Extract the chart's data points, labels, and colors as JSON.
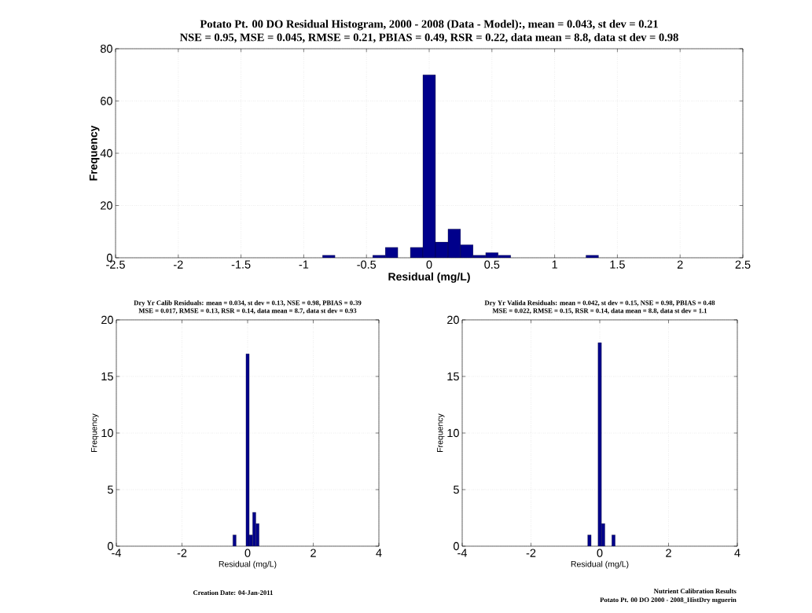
{
  "chart_data": [
    {
      "type": "histogram",
      "title": "Potato Pt. 00 DO Residual Histogram, 2000 - 2008 (Data - Model):, mean =  0.043, st dev = 0.21",
      "subtitle": "NSE = 0.95, MSE = 0.045, RMSE = 0.21, PBIAS = 0.49, RSR = 0.22, data mean = 8.8, data st dev = 0.98",
      "xlabel": "Residual (mg/L)",
      "ylabel": "Frequency",
      "bins": [
        -0.85,
        -0.75,
        -0.65,
        -0.55,
        -0.45,
        -0.35,
        -0.25,
        -0.15,
        -0.05,
        0.05,
        0.15,
        0.25,
        0.35,
        0.45,
        0.55,
        0.65,
        0.75,
        0.85,
        0.95,
        1.05,
        1.15,
        1.25,
        1.35
      ],
      "values": [
        1,
        0,
        0,
        0,
        1,
        4,
        0,
        4,
        70,
        6,
        11,
        5,
        1,
        2,
        1,
        0,
        0,
        0,
        0,
        0,
        0,
        1
      ],
      "color": "#00008b",
      "xlim": [
        -2.5,
        2.5
      ],
      "ylim": [
        0,
        80
      ],
      "xticks": [
        -2.5,
        -2,
        -1.5,
        -1,
        -0.5,
        0,
        0.5,
        1,
        1.5,
        2,
        2.5
      ],
      "yticks": [
        0,
        20,
        40,
        60,
        80
      ],
      "grid": true
    },
    {
      "type": "histogram",
      "title": "Dry Yr Calib Residuals:  mean =  0.034, st dev = 0.13, NSE =  0.98, PBIAS = 0.39",
      "subtitle": "MSE = 0.017, RMSE = 0.13, RSR = 0.14, data mean = 8.7, data st dev = 0.93",
      "xlabel": "Residual (mg/L)",
      "ylabel": "Frequency",
      "bins": [
        -0.45,
        -0.35,
        -0.25,
        -0.15,
        -0.05,
        0.05,
        0.15,
        0.25,
        0.35
      ],
      "values": [
        1,
        0,
        0,
        0,
        17,
        1,
        3,
        2
      ],
      "color": "#00008b",
      "xlim": [
        -4,
        4
      ],
      "ylim": [
        0,
        20
      ],
      "xticks": [
        -4,
        -2,
        0,
        2,
        4
      ],
      "yticks": [
        0,
        5,
        10,
        15,
        20
      ],
      "grid": true,
      "annotations": [
        "Creation Date:  04-Jan-2011"
      ]
    },
    {
      "type": "histogram",
      "title": "Dry Yr Valida Residuals:  mean =  0.042, st dev = 0.15, NSE =  0.98, PBIAS = 0.48",
      "subtitle": "MSE = 0.022, RMSE = 0.15, RSR = 0.14, data mean = 8.8, data st dev = 1.1",
      "xlabel": "Residual (mg/L)",
      "ylabel": "Frequency",
      "bins": [
        -0.35,
        -0.25,
        -0.15,
        -0.05,
        0.05,
        0.15,
        0.25,
        0.35,
        0.45
      ],
      "values": [
        1,
        0,
        0,
        18,
        2,
        0,
        0,
        1
      ],
      "color": "#00008b",
      "xlim": [
        -4,
        4
      ],
      "ylim": [
        0,
        20
      ],
      "xticks": [
        -4,
        -2,
        0,
        2,
        4
      ],
      "yticks": [
        0,
        5,
        10,
        15,
        20
      ],
      "grid": true,
      "annotations": [
        "Nutrient Calibration Results",
        "Potato Pt. 00 DO 2000 - 2008_HistDry mguerin"
      ]
    }
  ]
}
